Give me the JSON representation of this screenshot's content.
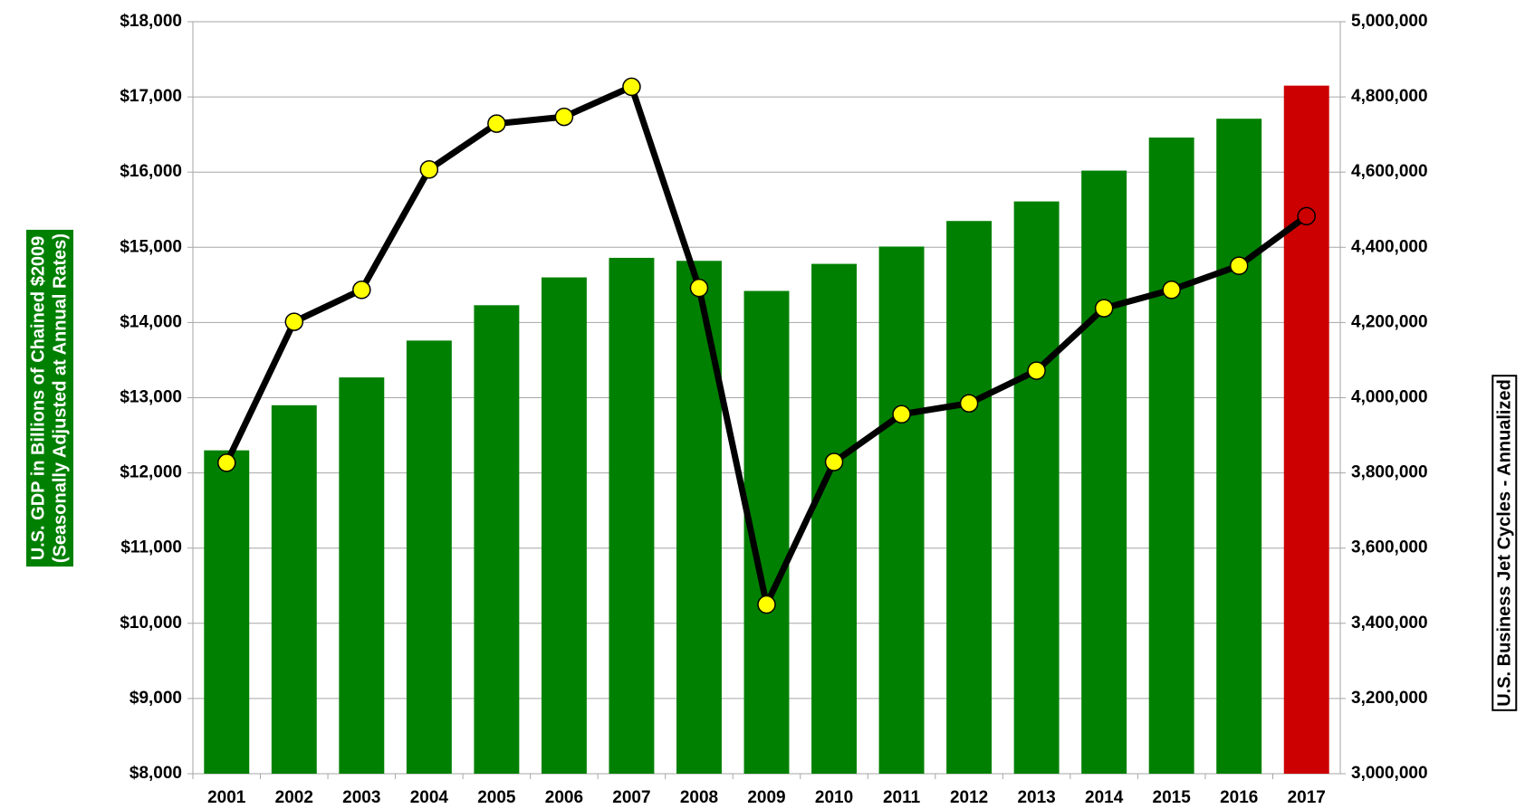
{
  "chart_data": {
    "type": "bar-line",
    "categories": [
      "2001",
      "2002",
      "2003",
      "2004",
      "2005",
      "2006",
      "2007",
      "2008",
      "2009",
      "2010",
      "2011",
      "2012",
      "2013",
      "2014",
      "2015",
      "2016",
      "2017"
    ],
    "y_label": [
      "U.S. GDP in Billions of Chained $2009",
      "(Seasonally Adjusted at Annual Rates)"
    ],
    "y2_label": "U.S. Business Jet Cycles - Annualized",
    "series": [
      {
        "type": "bar",
        "axis": "y",
        "values": [
          12300,
          12900,
          13270,
          13760,
          14230,
          14600,
          14860,
          14820,
          14420,
          14780,
          15010,
          15350,
          15610,
          16020,
          16460,
          16710,
          17150
        ],
        "colors": [
          "#008000",
          "#008000",
          "#008000",
          "#008000",
          "#008000",
          "#008000",
          "#008000",
          "#008000",
          "#008000",
          "#008000",
          "#008000",
          "#008000",
          "#008000",
          "#008000",
          "#008000",
          "#008000",
          "#cc0000"
        ]
      },
      {
        "type": "line",
        "axis": "y2",
        "color": "#000000",
        "values": [
          3827000,
          4202000,
          4287000,
          4607000,
          4729000,
          4747000,
          4827000,
          4292000,
          3450000,
          3829000,
          3956000,
          3985000,
          4072000,
          4238000,
          4287000,
          4351000,
          4483000
        ],
        "marker_colors": [
          "#ffff00",
          "#ffff00",
          "#ffff00",
          "#ffff00",
          "#ffff00",
          "#ffff00",
          "#ffff00",
          "#ffff00",
          "#ffff00",
          "#ffff00",
          "#ffff00",
          "#ffff00",
          "#ffff00",
          "#ffff00",
          "#ffff00",
          "#ffff00",
          "#cc0000"
        ]
      }
    ],
    "ylim": [
      8000,
      18000
    ],
    "yticks": [
      {
        "value": 8000,
        "label": "$8,000"
      },
      {
        "value": 9000,
        "label": "$9,000"
      },
      {
        "value": 10000,
        "label": "$10,000"
      },
      {
        "value": 11000,
        "label": "$11,000"
      },
      {
        "value": 12000,
        "label": "$12,000"
      },
      {
        "value": 13000,
        "label": "$13,000"
      },
      {
        "value": 14000,
        "label": "$14,000"
      },
      {
        "value": 15000,
        "label": "$15,000"
      },
      {
        "value": 16000,
        "label": "$16,000"
      },
      {
        "value": 17000,
        "label": "$17,000"
      },
      {
        "value": 18000,
        "label": "$18,000"
      }
    ],
    "y2lim": [
      3000000,
      5000000
    ],
    "y2ticks": [
      {
        "value": 3000000,
        "label": "3,000,000"
      },
      {
        "value": 3200000,
        "label": "3,200,000"
      },
      {
        "value": 3400000,
        "label": "3,400,000"
      },
      {
        "value": 3600000,
        "label": "3,600,000"
      },
      {
        "value": 3800000,
        "label": "3,800,000"
      },
      {
        "value": 4000000,
        "label": "4,000,000"
      },
      {
        "value": 4200000,
        "label": "4,200,000"
      },
      {
        "value": 4400000,
        "label": "4,400,000"
      },
      {
        "value": 4600000,
        "label": "4,600,000"
      },
      {
        "value": 4800000,
        "label": "4,800,000"
      },
      {
        "value": 5000000,
        "label": "5,000,000"
      }
    ],
    "grid": true
  }
}
